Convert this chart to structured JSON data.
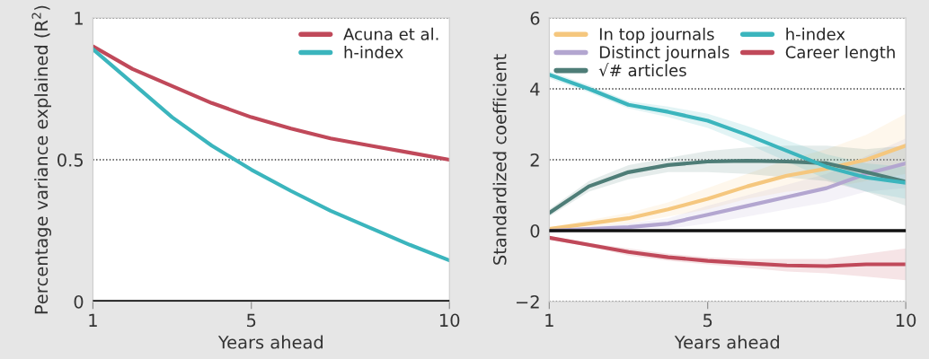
{
  "chart_data": [
    {
      "type": "line",
      "xlabel": "Years ahead",
      "ylabel": "Percentage variance explained (R$^{2}$)",
      "x": [
        1,
        2,
        3,
        4,
        5,
        6,
        7,
        8,
        9,
        10
      ],
      "xlim": [
        1,
        10
      ],
      "xticks": [
        1,
        5,
        10
      ],
      "ylim": [
        0,
        1
      ],
      "yticks": [
        0,
        0.5,
        1
      ],
      "grid": "y",
      "legend": "top right",
      "marker": "none",
      "line_style": "solid",
      "ref_lines": [
        {
          "axis": "y",
          "value": 0,
          "color": "#111111",
          "line_style": "solid"
        }
      ],
      "series": [
        {
          "name": "Acuna et al.",
          "color": "#c0495a",
          "values": [
            0.9,
            0.82,
            0.76,
            0.7,
            0.65,
            0.61,
            0.575,
            0.55,
            0.525,
            0.5
          ]
        },
        {
          "name": "h-index",
          "color": "#3bb5bd",
          "values": [
            0.89,
            0.77,
            0.65,
            0.55,
            0.465,
            0.39,
            0.32,
            0.26,
            0.2,
            0.145
          ]
        }
      ]
    },
    {
      "type": "line",
      "xlabel": "Years ahead",
      "ylabel": "Standardized coefficient",
      "x": [
        1,
        2,
        3,
        4,
        5,
        6,
        7,
        8,
        9,
        10
      ],
      "xlim": [
        1,
        10
      ],
      "xticks": [
        1,
        5,
        10
      ],
      "ylim": [
        -2,
        6
      ],
      "yticks": [
        {
          "value": -2,
          "label": "−2"
        },
        0,
        2,
        4,
        6
      ],
      "grid": "y",
      "legend": "top right",
      "marker": "none",
      "line_style": "solid",
      "ref_lines": [
        {
          "axis": "y",
          "value": 0,
          "color": "#111111",
          "line_style": "solid"
        }
      ],
      "series": [
        {
          "name": "In top journals",
          "color": "#f5c77e",
          "values": [
            0.05,
            0.2,
            0.35,
            0.6,
            0.9,
            1.25,
            1.55,
            1.75,
            2.0,
            2.4
          ],
          "lower": [
            0.0,
            0.1,
            0.2,
            0.4,
            0.6,
            0.9,
            1.1,
            1.2,
            1.4,
            1.6
          ],
          "upper": [
            0.1,
            0.3,
            0.5,
            0.8,
            1.2,
            1.6,
            2.0,
            2.3,
            2.7,
            3.3
          ]
        },
        {
          "name": "Distinct journals",
          "color": "#b3a6d0",
          "values": [
            0.0,
            0.05,
            0.1,
            0.2,
            0.45,
            0.7,
            0.95,
            1.2,
            1.6,
            1.9
          ],
          "lower": [
            -0.05,
            0.0,
            0.0,
            0.05,
            0.2,
            0.4,
            0.6,
            0.8,
            1.1,
            1.2
          ],
          "upper": [
            0.05,
            0.1,
            0.2,
            0.35,
            0.7,
            1.0,
            1.3,
            1.6,
            2.1,
            2.6
          ]
        },
        {
          "name": "√# articles",
          "color": "#4e7d77",
          "values": [
            0.5,
            1.25,
            1.65,
            1.85,
            1.95,
            1.97,
            1.95,
            1.9,
            1.65,
            1.38
          ],
          "lower": [
            0.4,
            1.1,
            1.45,
            1.65,
            1.65,
            1.6,
            1.5,
            1.4,
            1.1,
            0.7
          ],
          "upper": [
            0.6,
            1.4,
            1.85,
            2.05,
            2.25,
            2.35,
            2.4,
            2.4,
            2.3,
            2.4
          ]
        },
        {
          "name": "h-index",
          "color": "#3bb5bd",
          "values": [
            4.4,
            4.0,
            3.55,
            3.35,
            3.1,
            2.7,
            2.25,
            1.8,
            1.5,
            1.35
          ],
          "lower": [
            4.3,
            3.9,
            3.45,
            3.2,
            2.9,
            2.45,
            1.95,
            1.45,
            1.1,
            0.9
          ],
          "upper": [
            4.5,
            4.1,
            3.65,
            3.5,
            3.3,
            2.95,
            2.55,
            2.15,
            1.9,
            1.8
          ]
        },
        {
          "name": "Career length",
          "color": "#c0495a",
          "values": [
            -0.2,
            -0.4,
            -0.6,
            -0.75,
            -0.85,
            -0.92,
            -0.98,
            -1.0,
            -0.95,
            -0.95
          ],
          "lower": [
            -0.25,
            -0.45,
            -0.7,
            -0.85,
            -0.95,
            -1.05,
            -1.15,
            -1.2,
            -1.3,
            -1.4
          ],
          "upper": [
            -0.15,
            -0.35,
            -0.5,
            -0.65,
            -0.75,
            -0.8,
            -0.8,
            -0.8,
            -0.65,
            -0.5
          ]
        }
      ]
    }
  ]
}
